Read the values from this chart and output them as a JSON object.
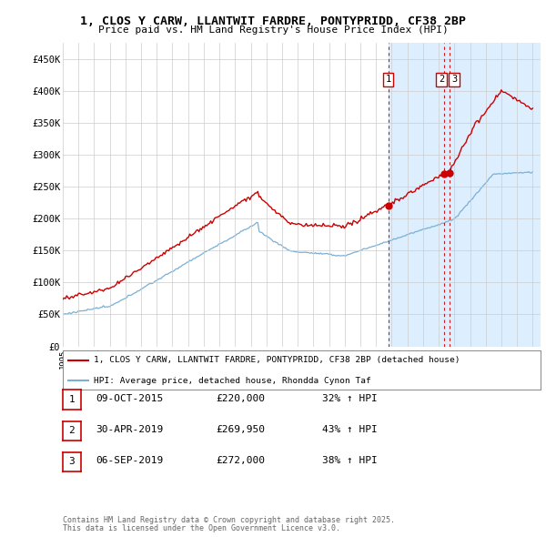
{
  "title": "1, CLOS Y CARW, LLANTWIT FARDRE, PONTYPRIDD, CF38 2BP",
  "subtitle": "Price paid vs. HM Land Registry's House Price Index (HPI)",
  "ylim": [
    0,
    475000
  ],
  "yticks": [
    0,
    50000,
    100000,
    150000,
    200000,
    250000,
    300000,
    350000,
    400000,
    450000
  ],
  "ytick_labels": [
    "£0",
    "£50K",
    "£100K",
    "£150K",
    "£200K",
    "£250K",
    "£300K",
    "£350K",
    "£400K",
    "£450K"
  ],
  "xlim_start": 1995.0,
  "xlim_end": 2025.5,
  "red_line_color": "#cc0000",
  "blue_line_color": "#7ab0d4",
  "shade_color": "#ddeeff",
  "transaction_color": "#cc0000",
  "transactions": [
    {
      "year": 2015.77,
      "price": 220000,
      "label": "1"
    },
    {
      "year": 2019.33,
      "price": 269950,
      "label": "2"
    },
    {
      "year": 2019.67,
      "price": 272000,
      "label": "3"
    }
  ],
  "legend_red_label": "1, CLOS Y CARW, LLANTWIT FARDRE, PONTYPRIDD, CF38 2BP (detached house)",
  "legend_blue_label": "HPI: Average price, detached house, Rhondda Cynon Taf",
  "table_rows": [
    {
      "num": "1",
      "date": "09-OCT-2015",
      "price": "£220,000",
      "hpi": "32% ↑ HPI"
    },
    {
      "num": "2",
      "date": "30-APR-2019",
      "price": "£269,950",
      "hpi": "43% ↑ HPI"
    },
    {
      "num": "3",
      "date": "06-SEP-2019",
      "price": "£272,000",
      "hpi": "38% ↑ HPI"
    }
  ],
  "footnote1": "Contains HM Land Registry data © Crown copyright and database right 2025.",
  "footnote2": "This data is licensed under the Open Government Licence v3.0.",
  "background_color": "#ffffff",
  "grid_color": "#cccccc"
}
